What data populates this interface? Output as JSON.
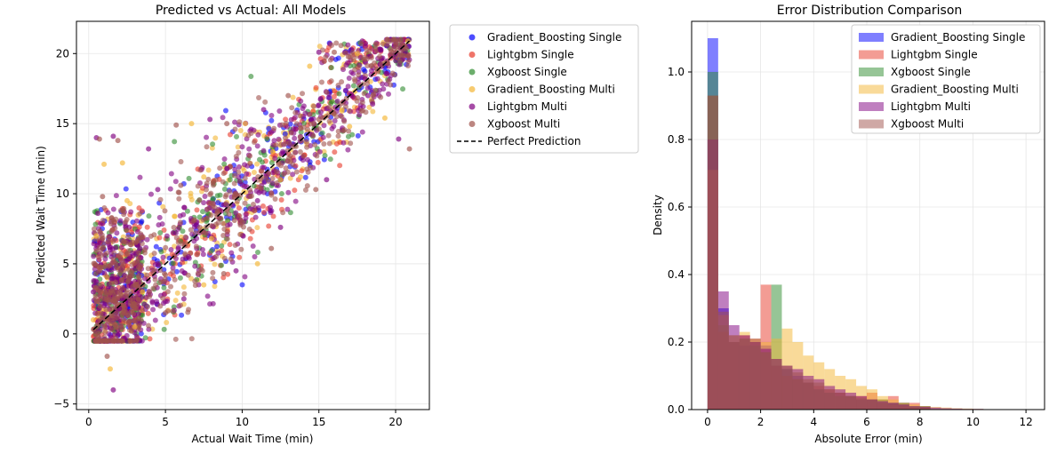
{
  "chart_data": [
    {
      "type": "scatter",
      "title": "Predicted vs Actual: All Models",
      "xlabel": "Actual Wait Time (min)",
      "ylabel": "Predicted Wait Time (min)",
      "xlim": [
        -0.8,
        22.2
      ],
      "ylim": [
        -5.4,
        22.3
      ],
      "xticks": [
        "0",
        "5",
        "10",
        "15",
        "20"
      ],
      "yticks": [
        "−5",
        "0",
        "5",
        "10",
        "15",
        "20"
      ],
      "grid": true,
      "legend_position": "outside-right",
      "series": [
        {
          "name": "Gradient_Boosting Single",
          "color": "#0000ff",
          "marker": "circle"
        },
        {
          "name": "Lightgbm Single",
          "color": "#e8392a",
          "marker": "circle"
        },
        {
          "name": "Xgboost Single",
          "color": "#2e8b2e",
          "marker": "circle"
        },
        {
          "name": "Gradient_Boosting Multi",
          "color": "#f4b533",
          "marker": "circle"
        },
        {
          "name": "Lightgbm Multi",
          "color": "#800080",
          "marker": "circle"
        },
        {
          "name": "Xgboost Multi",
          "color": "#a0524c",
          "marker": "circle"
        }
      ],
      "reference_line": {
        "name": "Perfect Prediction",
        "x": [
          0.3,
          20.9
        ],
        "y": [
          0.3,
          20.9
        ],
        "style": "dashed",
        "color": "#000000"
      },
      "sample_points": [
        [
          0.5,
          14.0
        ],
        [
          0.7,
          13.9
        ],
        [
          1.0,
          12.1
        ],
        [
          1.6,
          14.1
        ],
        [
          1.9,
          13.8
        ],
        [
          2.2,
          12.2
        ],
        [
          3.9,
          13.2
        ],
        [
          5.7,
          14.9
        ],
        [
          6.7,
          15.0
        ],
        [
          7.9,
          15.3
        ],
        [
          9.0,
          15.0
        ],
        [
          10.2,
          15.0
        ],
        [
          11.4,
          16.0
        ],
        [
          13.0,
          17.0
        ],
        [
          14.4,
          19.1
        ],
        [
          15.0,
          20.1
        ],
        [
          16.0,
          20.1
        ],
        [
          17.5,
          20.0
        ],
        [
          19.0,
          20.3
        ],
        [
          20.0,
          20.6
        ],
        [
          20.8,
          20.9
        ],
        [
          20.2,
          13.9
        ],
        [
          20.9,
          13.2
        ],
        [
          19.3,
          15.4
        ],
        [
          18.2,
          17.0
        ],
        [
          16.8,
          16.8
        ],
        [
          16.5,
          15.9
        ],
        [
          15.5,
          11.0
        ],
        [
          14.8,
          10.3
        ],
        [
          13.8,
          11.2
        ],
        [
          12.5,
          7.6
        ],
        [
          11.9,
          6.1
        ],
        [
          11.0,
          5.0
        ],
        [
          9.6,
          4.5
        ],
        [
          8.8,
          4.3
        ],
        [
          7.5,
          3.5
        ],
        [
          6.2,
          2.5
        ],
        [
          5.0,
          1.5
        ],
        [
          3.0,
          0.5
        ],
        [
          2.0,
          0.0
        ],
        [
          1.2,
          -1.6
        ],
        [
          1.4,
          -2.5
        ],
        [
          1.6,
          -4.0
        ],
        [
          0.6,
          -0.2
        ],
        [
          0.3,
          1.0
        ],
        [
          0.3,
          3.0
        ],
        [
          0.4,
          5.0
        ],
        [
          0.5,
          7.0
        ],
        [
          0.6,
          8.6
        ],
        [
          0.9,
          9.8
        ],
        [
          2.5,
          9.5
        ],
        [
          4.5,
          10.3
        ],
        [
          6.0,
          10.6
        ],
        [
          7.5,
          11.2
        ],
        [
          9.0,
          11.8
        ],
        [
          10.5,
          12.7
        ],
        [
          12.0,
          13.0
        ],
        [
          13.5,
          14.6
        ],
        [
          15.0,
          15.3
        ],
        [
          16.5,
          16.0
        ],
        [
          18.0,
          18.2
        ],
        [
          19.5,
          19.3
        ],
        [
          17.0,
          14.8
        ],
        [
          18.5,
          16.4
        ],
        [
          14.0,
          12.7
        ],
        [
          12.5,
          11.0
        ],
        [
          11.0,
          9.5
        ],
        [
          9.5,
          8.1
        ],
        [
          8.0,
          6.8
        ],
        [
          6.5,
          5.5
        ],
        [
          5.0,
          4.2
        ],
        [
          3.5,
          3.0
        ],
        [
          2.0,
          1.8
        ]
      ]
    },
    {
      "type": "bar",
      "subtype": "histogram",
      "title": "Error Distribution Comparison",
      "xlabel": "Absolute Error (min)",
      "ylabel": "Density",
      "xlim": [
        -0.6,
        12.7
      ],
      "ylim": [
        0,
        1.15
      ],
      "xticks": [
        "0",
        "2",
        "4",
        "6",
        "8",
        "10",
        "12"
      ],
      "yticks": [
        "0.0",
        "0.2",
        "0.4",
        "0.6",
        "0.8",
        "1.0"
      ],
      "grid": true,
      "legend_position": "top-right",
      "opacity": 0.5,
      "series": [
        {
          "name": "Gradient_Boosting Single",
          "color": "#0000ff",
          "bin_width": 0.4,
          "bins": [
            0.0,
            0.4,
            0.8,
            1.2,
            1.6,
            2.0,
            2.4,
            2.8,
            3.2,
            3.6,
            4.0,
            4.4,
            4.8,
            5.2,
            5.6,
            6.0,
            6.4,
            6.8,
            7.2,
            7.6,
            8.0
          ],
          "values": [
            1.1,
            0.3,
            0.2,
            0.19,
            0.21,
            0.19,
            0.13,
            0.12,
            0.1,
            0.08,
            0.06,
            0.05,
            0.05,
            0.04,
            0.03,
            0.03,
            0.02,
            0.02,
            0.02,
            0.01,
            0.01
          ]
        },
        {
          "name": "Lightgbm Single",
          "color": "#e8392a",
          "bin_width": 0.4,
          "bins": [
            0.0,
            0.4,
            0.8,
            1.2,
            1.6,
            2.0,
            2.4,
            2.8,
            3.2,
            3.6,
            4.0,
            4.4,
            4.8,
            5.2,
            5.6,
            6.0,
            6.4,
            6.8,
            7.2,
            7.6,
            8.0
          ],
          "values": [
            0.93,
            0.23,
            0.2,
            0.22,
            0.21,
            0.37,
            0.13,
            0.1,
            0.09,
            0.08,
            0.07,
            0.06,
            0.05,
            0.04,
            0.04,
            0.05,
            0.03,
            0.04,
            0.02,
            0.02,
            0.01
          ]
        },
        {
          "name": "Xgboost Single",
          "color": "#2e8b2e",
          "bin_width": 0.4,
          "bins": [
            0.0,
            0.4,
            0.8,
            1.2,
            1.6,
            2.0,
            2.4,
            2.8,
            3.2,
            3.6,
            4.0,
            4.4,
            4.8,
            5.2,
            5.6,
            6.0,
            6.4,
            6.8,
            7.2,
            7.6,
            8.0
          ],
          "values": [
            1.0,
            0.25,
            0.2,
            0.21,
            0.19,
            0.17,
            0.37,
            0.12,
            0.09,
            0.08,
            0.06,
            0.05,
            0.04,
            0.04,
            0.03,
            0.03,
            0.03,
            0.02,
            0.02,
            0.01,
            0.01
          ]
        },
        {
          "name": "Gradient_Boosting Multi",
          "color": "#f4b533",
          "bin_width": 0.4,
          "bins": [
            0.0,
            0.4,
            0.8,
            1.2,
            1.6,
            2.0,
            2.4,
            2.8,
            3.2,
            3.6,
            4.0,
            4.4,
            4.8,
            5.2,
            5.6,
            6.0,
            6.4,
            6.8,
            7.2,
            7.6,
            8.0,
            8.4,
            8.8,
            9.2,
            9.6,
            10.0,
            10.4
          ],
          "values": [
            0.71,
            0.28,
            0.22,
            0.23,
            0.21,
            0.2,
            0.21,
            0.24,
            0.2,
            0.16,
            0.14,
            0.12,
            0.1,
            0.09,
            0.07,
            0.06,
            0.04,
            0.03,
            0.02,
            0.015,
            0.01,
            0.008,
            0.006,
            0.004,
            0.003,
            0.002,
            0.001
          ]
        },
        {
          "name": "Lightgbm Multi",
          "color": "#800080",
          "bin_width": 0.4,
          "bins": [
            0.0,
            0.4,
            0.8,
            1.2,
            1.6,
            2.0,
            2.4,
            2.8,
            3.2,
            3.6,
            4.0,
            4.4,
            4.8,
            5.2,
            5.6,
            6.0,
            6.4,
            6.8,
            7.2,
            7.6,
            8.0,
            8.4,
            8.8,
            9.2,
            9.6,
            10.0,
            10.4,
            10.8
          ],
          "values": [
            0.8,
            0.35,
            0.25,
            0.22,
            0.2,
            0.18,
            0.15,
            0.13,
            0.12,
            0.1,
            0.09,
            0.07,
            0.06,
            0.05,
            0.04,
            0.03,
            0.025,
            0.02,
            0.015,
            0.01,
            0.008,
            0.006,
            0.004,
            0.003,
            0.002,
            0.002,
            0.001,
            0.001
          ]
        },
        {
          "name": "Xgboost Multi",
          "color": "#a0524c",
          "bin_width": 0.4,
          "bins": [
            0.0,
            0.4,
            0.8,
            1.2,
            1.6,
            2.0,
            2.4,
            2.8,
            3.2,
            3.6,
            4.0,
            4.4,
            4.8,
            5.2,
            5.6,
            6.0,
            6.4,
            6.8,
            7.2,
            7.6,
            8.0
          ],
          "values": [
            0.93,
            0.29,
            0.22,
            0.21,
            0.2,
            0.17,
            0.15,
            0.13,
            0.11,
            0.09,
            0.08,
            0.06,
            0.05,
            0.04,
            0.035,
            0.03,
            0.02,
            0.015,
            0.01,
            0.008,
            0.005
          ]
        }
      ]
    }
  ]
}
